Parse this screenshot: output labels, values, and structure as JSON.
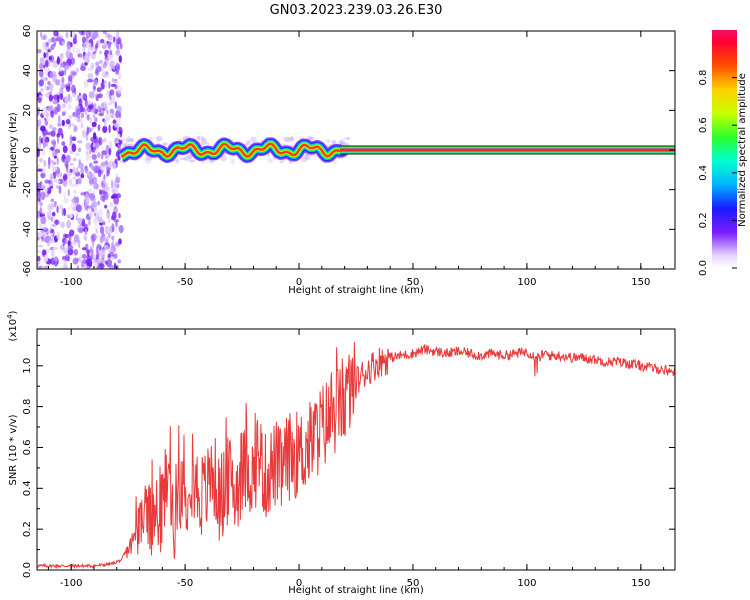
{
  "title": "GN03.2023.239.03.26.E30",
  "chart_data": [
    {
      "type": "heatmap",
      "xlabel": "Height of straight line (km)",
      "ylabel": "Frequency (Hz)",
      "xlim": [
        -115,
        165
      ],
      "ylim": [
        -60,
        60
      ],
      "x_ticks": [
        -100,
        -50,
        0,
        50,
        100,
        150
      ],
      "y_ticks": [
        -60,
        -40,
        -20,
        0,
        20,
        40,
        60
      ],
      "colorbar": {
        "label": "Normalized spectral amplitude",
        "range": [
          0.0,
          1.0
        ],
        "ticks": [
          "0.0",
          "0.2",
          "0.4",
          "0.6",
          "0.8"
        ],
        "colormap": "rainbow"
      },
      "features": {
        "noise_region_x": [
          -115,
          -78
        ],
        "signal_band_center_hz": 0,
        "signal_band_start_x": -78
      }
    },
    {
      "type": "line",
      "xlabel": "Height of straight line (km)",
      "ylabel": "SNR (10 * v/v)",
      "scale_note": "(x10^4)",
      "xlim": [
        -115,
        165
      ],
      "ylim": [
        0.0,
        1.18
      ],
      "x_ticks": [
        -100,
        -50,
        0,
        50,
        100,
        150
      ],
      "y_ticks": [
        "0.0",
        "0.2",
        "0.4",
        "0.6",
        "0.8",
        "1.0"
      ],
      "color": "#e83a3a",
      "series": [
        {
          "x": [
            -115,
            -100,
            -90,
            -82,
            -78,
            -75,
            -72,
            -70,
            -68,
            -65,
            -62,
            -60,
            -58,
            -55,
            -52,
            -50,
            -48,
            -45,
            -42,
            -40,
            -38,
            -35,
            -32,
            -30,
            -28,
            -25,
            -22,
            -20,
            -18,
            -15,
            -12,
            -10,
            -8,
            -5,
            -2,
            0,
            5,
            10,
            15,
            20,
            25,
            30,
            35,
            40,
            45,
            50,
            55,
            60,
            65,
            70,
            75,
            80,
            85,
            90,
            95,
            100,
            103,
            105,
            108,
            110,
            115,
            120,
            125,
            130,
            135,
            140,
            145,
            150,
            155,
            160,
            165
          ],
          "y": [
            0.02,
            0.02,
            0.02,
            0.03,
            0.05,
            0.1,
            0.15,
            0.2,
            0.3,
            0.22,
            0.28,
            0.3,
            0.45,
            0.26,
            0.42,
            0.28,
            0.52,
            0.4,
            0.36,
            0.4,
            0.5,
            0.34,
            0.42,
            0.45,
            0.38,
            0.48,
            0.5,
            0.44,
            0.6,
            0.45,
            0.5,
            0.52,
            0.48,
            0.55,
            0.57,
            0.56,
            0.62,
            0.7,
            0.76,
            0.84,
            0.92,
            0.98,
            1.02,
            1.04,
            1.05,
            1.06,
            1.08,
            1.07,
            1.06,
            1.07,
            1.06,
            1.05,
            1.06,
            1.05,
            1.06,
            1.07,
            1.05,
            1.04,
            1.06,
            1.05,
            1.05,
            1.04,
            1.04,
            1.03,
            1.02,
            1.02,
            1.01,
            1.0,
            0.99,
            0.98,
            0.97
          ]
        }
      ]
    }
  ]
}
